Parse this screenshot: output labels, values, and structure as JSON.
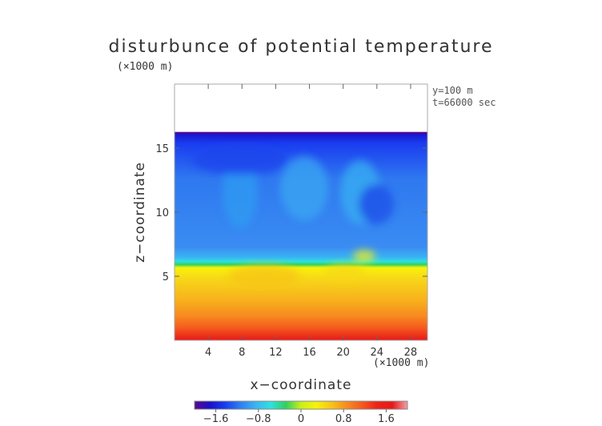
{
  "chart_data": {
    "type": "heatmap",
    "title": "disturbunce of potential temperature",
    "annotations": {
      "y_units": "(×1000 m)",
      "x_units": "(×1000 m)",
      "y_position": "y=100 m",
      "time": "t=66000 sec"
    },
    "xlabel": "x−coordinate",
    "ylabel": "z−coordinate",
    "xlim": [
      0,
      30
    ],
    "ylim": [
      0,
      20
    ],
    "x_ticks": [
      {
        "value": 4,
        "label": "4"
      },
      {
        "value": 8,
        "label": "8"
      },
      {
        "value": 12,
        "label": "12"
      },
      {
        "value": 16,
        "label": "16"
      },
      {
        "value": 20,
        "label": "20"
      },
      {
        "value": 24,
        "label": "24"
      },
      {
        "value": 28,
        "label": "28"
      }
    ],
    "y_ticks": [
      {
        "value": 5,
        "label": "5"
      },
      {
        "value": 10,
        "label": "10"
      },
      {
        "value": 15,
        "label": "15"
      }
    ],
    "colorbar": {
      "range": [
        -2,
        2
      ],
      "ticks": [
        {
          "value": -1.6,
          "label": "−1.6"
        },
        {
          "value": -0.8,
          "label": "−0.8"
        },
        {
          "value": 0,
          "label": "0"
        },
        {
          "value": 0.8,
          "label": "0.8"
        },
        {
          "value": 1.6,
          "label": "1.6"
        }
      ]
    },
    "colormap": [
      "#5a0a8c",
      "#1a10c8",
      "#1a3cf0",
      "#2f7ef0",
      "#39b4f2",
      "#2ee0e0",
      "#2fd060",
      "#c8f018",
      "#f7f20a",
      "#f7c418",
      "#f78c20",
      "#f55a1e",
      "#ec2418",
      "#e81818",
      "#f0a0a8"
    ],
    "field_top_z": 16.2
  }
}
